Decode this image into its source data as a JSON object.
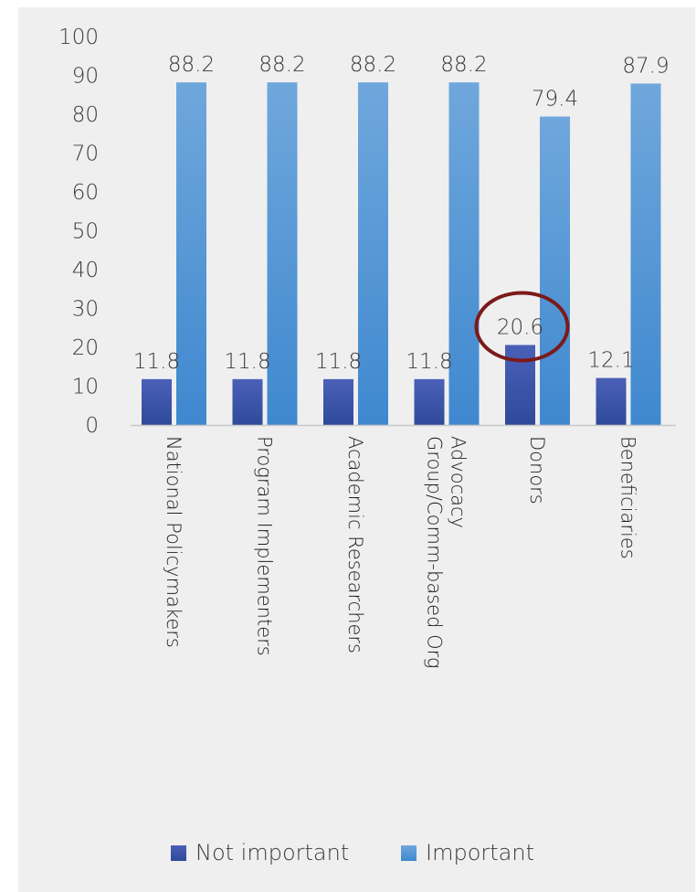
{
  "chart_data": {
    "type": "bar",
    "title": "",
    "xlabel": "",
    "ylabel": "",
    "ylim": [
      0,
      100
    ],
    "yticks": [
      0,
      10,
      20,
      30,
      40,
      50,
      60,
      70,
      80,
      90,
      100
    ],
    "categories": [
      "National Policymakers",
      "Program Implementers",
      "Academic Researchers",
      "Advocacy Group/Comm-based Org",
      "Donors",
      "Beneficiaries"
    ],
    "series": [
      {
        "name": "Not important",
        "color": "#4059ad",
        "values": [
          11.8,
          11.8,
          11.8,
          11.8,
          20.6,
          12.1
        ]
      },
      {
        "name": "Important",
        "color": "#5b9bd5",
        "values": [
          88.2,
          88.2,
          88.2,
          88.2,
          79.4,
          87.9
        ]
      }
    ],
    "data_labels": true,
    "grid": false,
    "legend": "bottom",
    "annotation": {
      "type": "ellipse-highlight",
      "target": "Donors / Not important",
      "color": "#7b1a1a"
    }
  }
}
